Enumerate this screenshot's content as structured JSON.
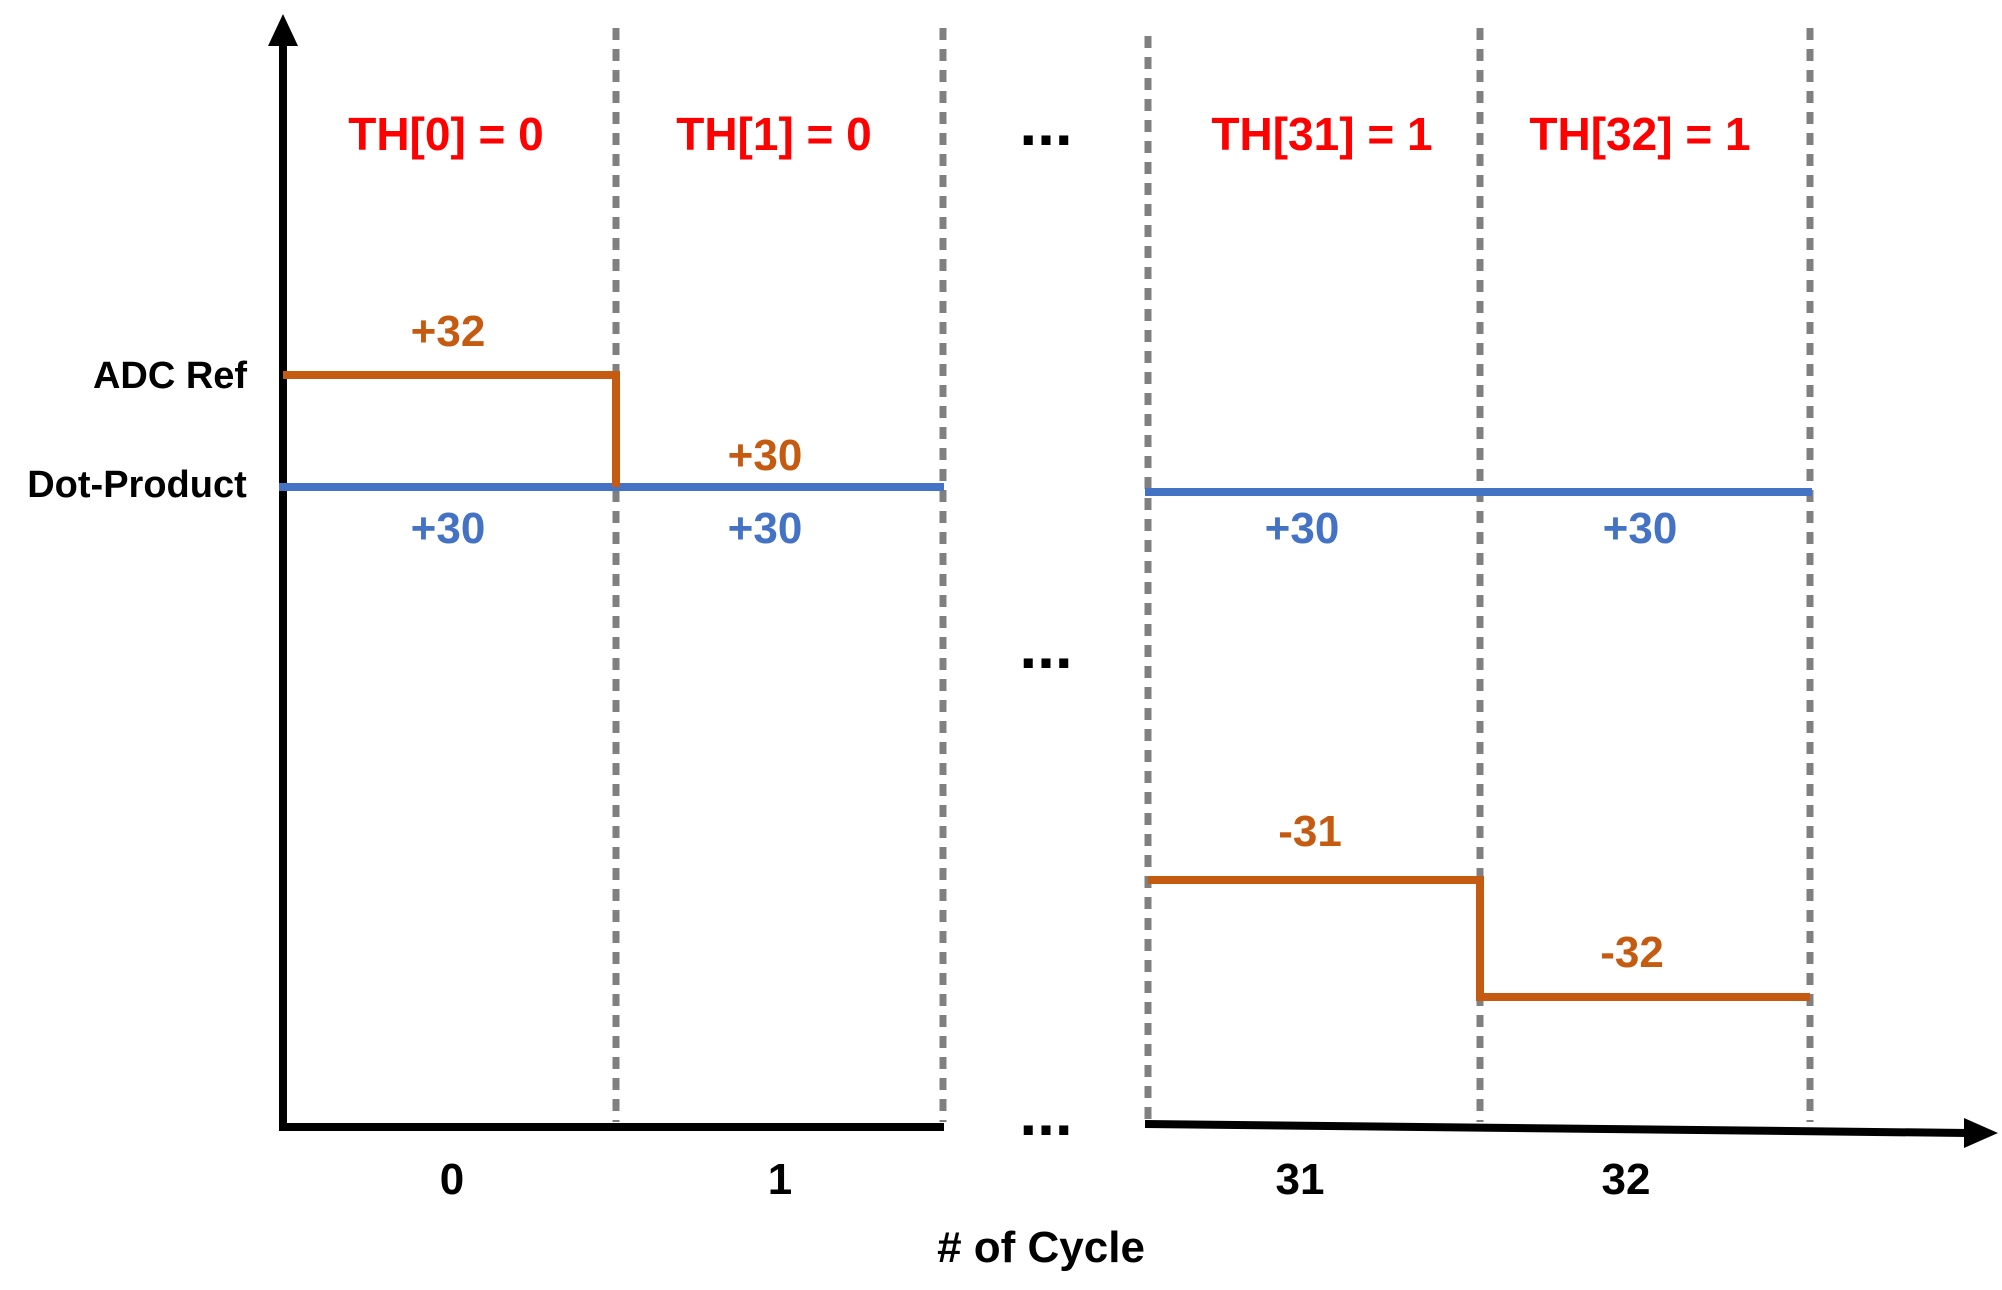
{
  "diagram": {
    "axis_labels": {
      "x_title": "# of Cycle",
      "adc_ref": "ADC Ref",
      "dot_product": "Dot-Product"
    },
    "ellipsis": "...",
    "cycles": [
      {
        "cycle": "0",
        "threshold": "TH[0] = 0",
        "adc_ref_value": "+32",
        "dot_product_value": "+30"
      },
      {
        "cycle": "1",
        "threshold": "TH[1] = 0",
        "adc_ref_value": "+30",
        "dot_product_value": "+30"
      },
      {
        "cycle": "31",
        "threshold": "TH[31] = 1",
        "adc_ref_value": "-31",
        "dot_product_value": "+30"
      },
      {
        "cycle": "32",
        "threshold": "TH[32] = 1",
        "adc_ref_value": "-32",
        "dot_product_value": "+30"
      }
    ],
    "colors": {
      "threshold": "#ff0000",
      "adc_ref": "#c55a11",
      "dot_product": "#4472c4",
      "axis": "#000000",
      "divider": "#808080"
    }
  }
}
